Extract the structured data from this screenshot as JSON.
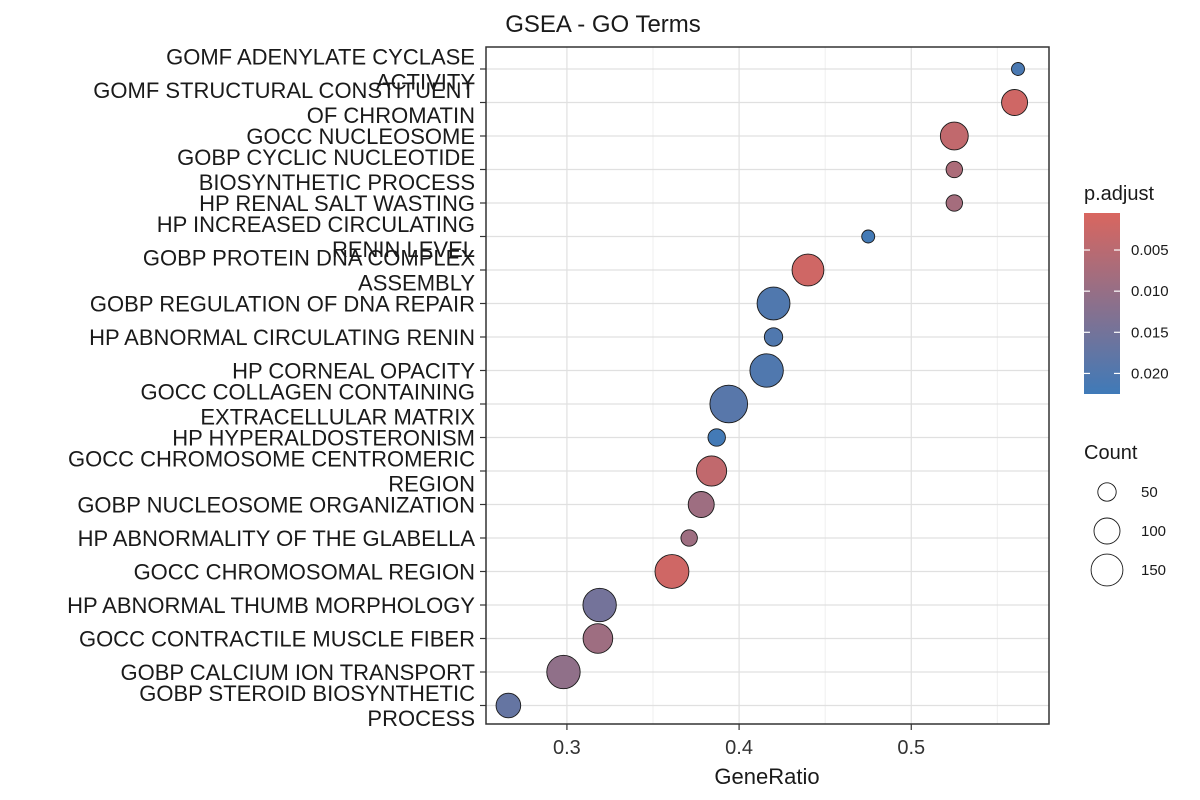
{
  "chart_data": {
    "type": "scatter",
    "title": "GSEA - GO Terms",
    "xlabel": "GeneRatio",
    "ylabel": "",
    "xlim": [
      0.253,
      0.58
    ],
    "xticks": [
      0.3,
      0.4,
      0.5
    ],
    "grid": true,
    "legend_position": "right",
    "color_scale": {
      "low_color": "#d9665f",
      "high_color": "#3f7ab8"
    },
    "color_legend": {
      "title": "p.adjust",
      "range": [
        0.0005,
        0.0225
      ],
      "ticks": [
        0.005,
        0.01,
        0.015,
        0.02
      ],
      "tick_labels": [
        "0.005",
        "0.010",
        "0.015",
        "0.020"
      ]
    },
    "size_legend": {
      "title": "Count",
      "values": [
        50,
        100,
        150
      ],
      "labels": [
        "50",
        "100",
        "150"
      ]
    },
    "categories": [
      [
        "GOMF ADENYLATE CYCLASE",
        "ACTIVITY"
      ],
      [
        "GOMF STRUCTURAL CONSTITUENT",
        "OF CHROMATIN"
      ],
      [
        "GOCC NUCLEOSOME"
      ],
      [
        "GOBP CYCLIC NUCLEOTIDE",
        "BIOSYNTHETIC PROCESS"
      ],
      [
        "HP RENAL SALT WASTING"
      ],
      [
        "HP INCREASED CIRCULATING",
        "RENIN LEVEL"
      ],
      [
        "GOBP PROTEIN DNA COMPLEX",
        "ASSEMBLY"
      ],
      [
        "GOBP REGULATION OF DNA REPAIR"
      ],
      [
        "HP ABNORMAL CIRCULATING RENIN"
      ],
      [
        "HP CORNEAL OPACITY"
      ],
      [
        "GOCC COLLAGEN CONTAINING",
        "EXTRACELLULAR MATRIX"
      ],
      [
        "HP HYPERALDOSTERONISM"
      ],
      [
        "GOCC CHROMOSOME CENTROMERIC",
        "REGION"
      ],
      [
        "GOBP NUCLEOSOME ORGANIZATION"
      ],
      [
        "HP ABNORMALITY OF THE GLABELLA"
      ],
      [
        "GOCC CHROMOSOMAL REGION"
      ],
      [
        "HP ABNORMAL THUMB MORPHOLOGY"
      ],
      [
        "GOCC CONTRACTILE MUSCLE FIBER"
      ],
      [
        "GOBP CALCIUM ION TRANSPORT"
      ],
      [
        "GOBP STEROID BIOSYNTHETIC",
        "PROCESS"
      ]
    ],
    "points": [
      {
        "gene_ratio": 0.562,
        "count": 25,
        "p_adjust": 0.021
      },
      {
        "gene_ratio": 0.56,
        "count": 100,
        "p_adjust": 0.002
      },
      {
        "gene_ratio": 0.525,
        "count": 115,
        "p_adjust": 0.004
      },
      {
        "gene_ratio": 0.525,
        "count": 40,
        "p_adjust": 0.007
      },
      {
        "gene_ratio": 0.525,
        "count": 40,
        "p_adjust": 0.008
      },
      {
        "gene_ratio": 0.475,
        "count": 25,
        "p_adjust": 0.022
      },
      {
        "gene_ratio": 0.44,
        "count": 150,
        "p_adjust": 0.002
      },
      {
        "gene_ratio": 0.42,
        "count": 160,
        "p_adjust": 0.02
      },
      {
        "gene_ratio": 0.42,
        "count": 50,
        "p_adjust": 0.02
      },
      {
        "gene_ratio": 0.416,
        "count": 165,
        "p_adjust": 0.02
      },
      {
        "gene_ratio": 0.394,
        "count": 210,
        "p_adjust": 0.019
      },
      {
        "gene_ratio": 0.387,
        "count": 45,
        "p_adjust": 0.022
      },
      {
        "gene_ratio": 0.384,
        "count": 135,
        "p_adjust": 0.004
      },
      {
        "gene_ratio": 0.378,
        "count": 100,
        "p_adjust": 0.009
      },
      {
        "gene_ratio": 0.371,
        "count": 40,
        "p_adjust": 0.009
      },
      {
        "gene_ratio": 0.361,
        "count": 170,
        "p_adjust": 0.002
      },
      {
        "gene_ratio": 0.319,
        "count": 165,
        "p_adjust": 0.015
      },
      {
        "gene_ratio": 0.318,
        "count": 130,
        "p_adjust": 0.009
      },
      {
        "gene_ratio": 0.298,
        "count": 165,
        "p_adjust": 0.011
      },
      {
        "gene_ratio": 0.266,
        "count": 90,
        "p_adjust": 0.017
      }
    ]
  }
}
